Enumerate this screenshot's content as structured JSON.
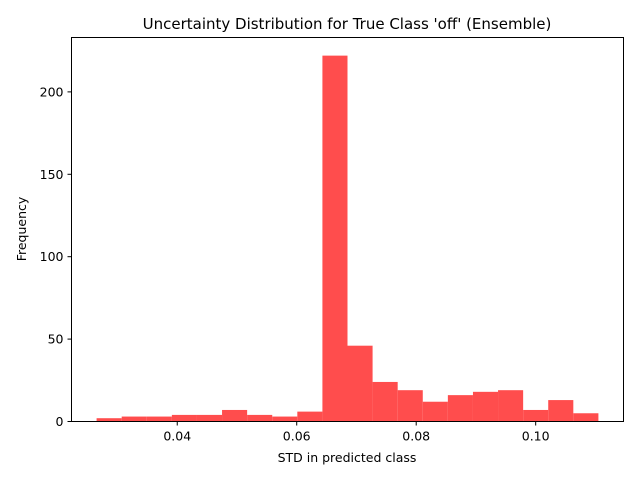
{
  "chart_data": {
    "type": "bar",
    "title": "Uncertainty Distribution for True Class 'off' (Ensemble)",
    "xlabel": "STD in predicted class",
    "ylabel": "Frequency",
    "bar_color": "#ff4d4d",
    "bin_edges": [
      0.0265,
      0.0307,
      0.0349,
      0.0391,
      0.0433,
      0.0475,
      0.0517,
      0.0559,
      0.0601,
      0.0643,
      0.0685,
      0.0727,
      0.0769,
      0.0811,
      0.0853,
      0.0895,
      0.0937,
      0.0979,
      0.1021,
      0.1063,
      0.1105
    ],
    "values": [
      2,
      3,
      3,
      4,
      4,
      7,
      4,
      3,
      6,
      222,
      46,
      24,
      19,
      12,
      16,
      18,
      19,
      7,
      13,
      5
    ],
    "xlim": [
      0.0223,
      0.1147
    ],
    "ylim": [
      0,
      233
    ],
    "xticks": [
      {
        "value": 0.04,
        "label": "0.04"
      },
      {
        "value": 0.06,
        "label": "0.06"
      },
      {
        "value": 0.08,
        "label": "0.08"
      },
      {
        "value": 0.1,
        "label": "0.10"
      }
    ],
    "yticks": [
      {
        "value": 0,
        "label": "0"
      },
      {
        "value": 50,
        "label": "50"
      },
      {
        "value": 100,
        "label": "100"
      },
      {
        "value": 150,
        "label": "150"
      },
      {
        "value": 200,
        "label": "200"
      }
    ],
    "grid": false,
    "legend": "none"
  }
}
